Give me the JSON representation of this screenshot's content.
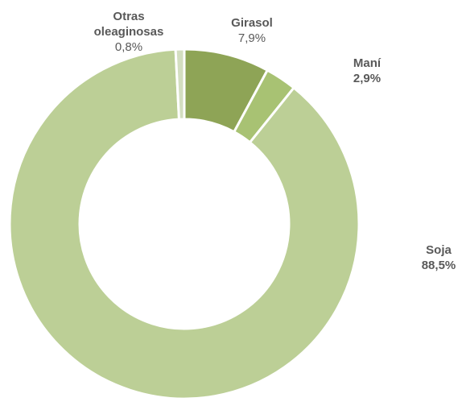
{
  "chart_data": {
    "type": "donut",
    "categories": [
      "Girasol",
      "Maní",
      "Soja",
      "Otras oleaginosas"
    ],
    "values": [
      7.9,
      2.9,
      88.5,
      0.8
    ],
    "value_labels": [
      "7,9%",
      "2,9%",
      "88,5%",
      "0,8%"
    ],
    "colors": [
      "#8ea456",
      "#a8c273",
      "#bccf96",
      "#d3dec0"
    ]
  }
}
